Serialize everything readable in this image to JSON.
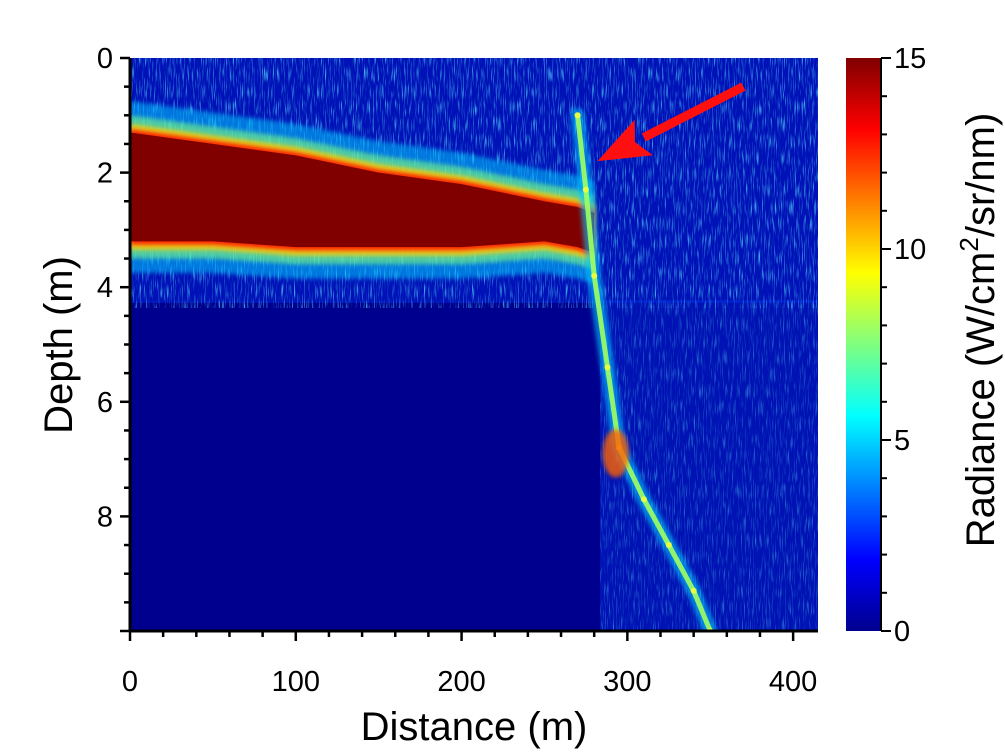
{
  "chart_data": {
    "type": "heatmap",
    "title": "",
    "xlabel": "Distance (m)",
    "ylabel": "Depth (m)",
    "xlim": [
      0,
      415
    ],
    "ylim": [
      0,
      10
    ],
    "y_inverted": true,
    "x_ticks": [
      "0",
      "100",
      "200",
      "300",
      "400"
    ],
    "y_ticks": [
      "0",
      "2",
      "4",
      "6",
      "8"
    ],
    "colorbar": {
      "label_prefix": "Radiance (W/cm",
      "label_sup": "2",
      "label_suffix": "/sr/nm)",
      "range": [
        0,
        15
      ],
      "ticks": [
        "0",
        "5",
        "10",
        "15"
      ],
      "colormap": "jet"
    },
    "layer_trace": [
      {
        "distance": 0,
        "depth_top": 1.3,
        "depth_bottom": 3.2
      },
      {
        "distance": 50,
        "depth_top": 1.5,
        "depth_bottom": 3.2
      },
      {
        "distance": 100,
        "depth_top": 1.7,
        "depth_bottom": 3.3
      },
      {
        "distance": 150,
        "depth_top": 2.0,
        "depth_bottom": 3.3
      },
      {
        "distance": 200,
        "depth_top": 2.2,
        "depth_bottom": 3.3
      },
      {
        "distance": 250,
        "depth_top": 2.5,
        "depth_bottom": 3.2
      },
      {
        "distance": 270,
        "depth_top": 2.6,
        "depth_bottom": 3.3
      },
      {
        "distance": 280,
        "depth_top": 2.7,
        "depth_bottom": 3.4
      }
    ],
    "feature_trace": [
      {
        "distance": 270,
        "depth": 1.0
      },
      {
        "distance": 275,
        "depth": 2.3
      },
      {
        "distance": 280,
        "depth": 3.8
      },
      {
        "distance": 288,
        "depth": 5.4
      },
      {
        "distance": 295,
        "depth": 6.8
      },
      {
        "distance": 310,
        "depth": 7.7
      },
      {
        "distance": 325,
        "depth": 8.5
      },
      {
        "distance": 340,
        "depth": 9.3
      },
      {
        "distance": 350,
        "depth": 10.0
      }
    ],
    "annotations": [
      {
        "type": "arrow",
        "color": "#ff1010",
        "from": {
          "distance": 370,
          "depth": 0.5
        },
        "to": {
          "distance": 282,
          "depth": 1.8
        }
      }
    ]
  }
}
